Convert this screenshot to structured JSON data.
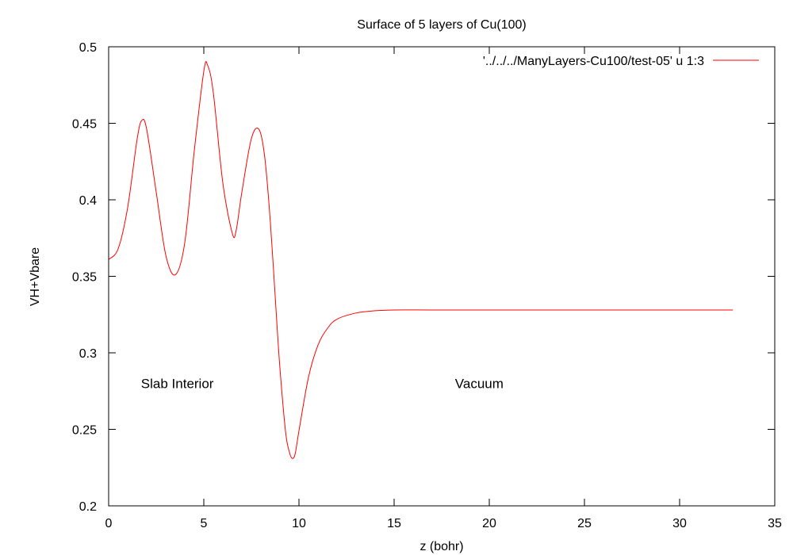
{
  "chart_data": {
    "type": "line",
    "title": "Surface of 5 layers of Cu(100)",
    "xlabel": "z (bohr)",
    "ylabel": "VH+Vbare",
    "xlim": [
      0,
      35
    ],
    "ylim": [
      0.2,
      0.5
    ],
    "xticks": [
      0,
      5,
      10,
      15,
      20,
      25,
      30,
      35
    ],
    "yticks": [
      0.2,
      0.25,
      0.3,
      0.35,
      0.4,
      0.45,
      0.5
    ],
    "xtick_labels": [
      "0",
      "5",
      "10",
      "15",
      "20",
      "25",
      "30",
      "35"
    ],
    "ytick_labels": [
      "0.2",
      "0.25",
      "0.3",
      "0.35",
      "0.4",
      "0.45",
      "0.5"
    ],
    "grid": false,
    "legend_position": "top-right",
    "annotations": [
      {
        "text": "Slab Interior",
        "x": 1.7,
        "y": 0.28
      },
      {
        "text": "Vacuum",
        "x": 18.2,
        "y": 0.28
      }
    ],
    "series": [
      {
        "name": "'../../../ManyLayers-Cu100/test-05' u 1:3",
        "color": "#ff0000",
        "x": [
          0,
          0.5,
          1.0,
          1.5,
          1.75,
          2.0,
          2.5,
          3.0,
          3.5,
          4.0,
          4.5,
          5.0,
          5.2,
          5.5,
          6.0,
          6.5,
          6.7,
          7.0,
          7.5,
          7.9,
          8.2,
          8.5,
          8.8,
          9.0,
          9.3,
          9.5,
          9.65,
          9.8,
          10.0,
          10.5,
          11.0,
          11.5,
          12.0,
          13.0,
          14.0,
          15.0,
          17.0,
          20.0,
          25.0,
          30.0,
          32.8
        ],
        "y": [
          0.361,
          0.368,
          0.395,
          0.44,
          0.452,
          0.446,
          0.405,
          0.364,
          0.351,
          0.372,
          0.432,
          0.484,
          0.488,
          0.47,
          0.411,
          0.378,
          0.38,
          0.405,
          0.44,
          0.446,
          0.428,
          0.385,
          0.327,
          0.29,
          0.248,
          0.235,
          0.231,
          0.234,
          0.249,
          0.284,
          0.305,
          0.316,
          0.322,
          0.326,
          0.3275,
          0.328,
          0.328,
          0.328,
          0.328,
          0.328,
          0.328
        ]
      }
    ]
  }
}
